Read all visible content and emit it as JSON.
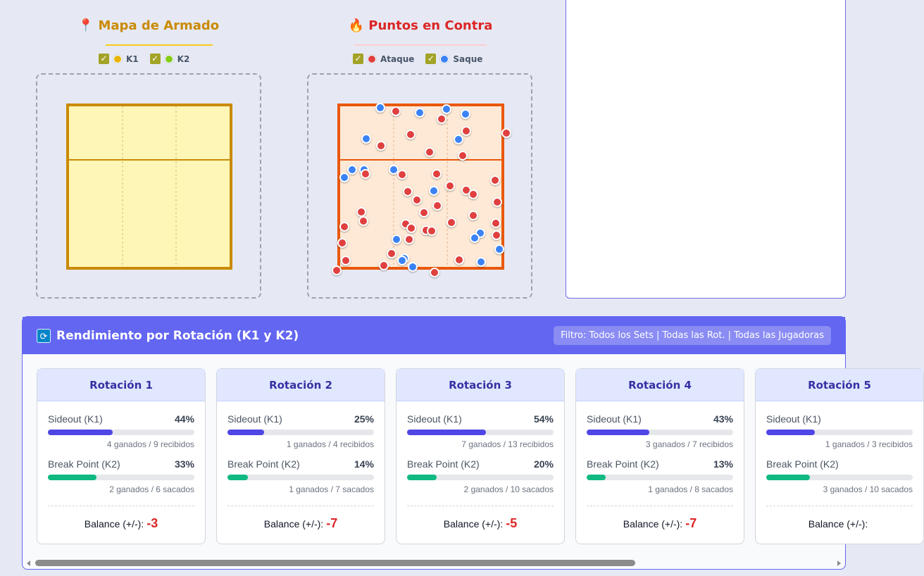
{
  "armado": {
    "title_icon": "📍",
    "title": "Mapa de Armado",
    "legend": [
      {
        "label": "K1",
        "color": "#eab308"
      },
      {
        "label": "K2",
        "color": "#84cc16"
      }
    ]
  },
  "contra": {
    "title_icon": "🔥",
    "title": "Puntos en Contra",
    "legend": [
      {
        "label": "Ataque",
        "color": "#e0403f"
      },
      {
        "label": "Saque",
        "color": "#3b82f6"
      }
    ]
  },
  "rotacion": {
    "icon": "🔄",
    "title": "Rendimiento por Rotación (K1 y K2)",
    "filter": "Filtro: Todos los Sets | Todas las Rot. | Todas las Jugadoras",
    "cards": [
      {
        "name": "Rotación 1",
        "so_label": "Sideout (K1)",
        "so_pct": "44%",
        "so_value": 0.44,
        "so_sub": "4 ganados / 9 recibidos",
        "bp_label": "Break Point (K2)",
        "bp_pct": "33%",
        "bp_value": 0.33,
        "bp_sub": "2 ganados / 6 sacados",
        "balance_label": "Balance (+/-):",
        "balance": "-3"
      },
      {
        "name": "Rotación 2",
        "so_label": "Sideout (K1)",
        "so_pct": "25%",
        "so_value": 0.25,
        "so_sub": "1 ganados / 4 recibidos",
        "bp_label": "Break Point (K2)",
        "bp_pct": "14%",
        "bp_value": 0.14,
        "bp_sub": "1 ganados / 7 sacados",
        "balance_label": "Balance (+/-):",
        "balance": "-7"
      },
      {
        "name": "Rotación 3",
        "so_label": "Sideout (K1)",
        "so_pct": "54%",
        "so_value": 0.54,
        "so_sub": "7 ganados / 13 recibidos",
        "bp_label": "Break Point (K2)",
        "bp_pct": "20%",
        "bp_value": 0.2,
        "bp_sub": "2 ganados / 10 sacados",
        "balance_label": "Balance (+/-):",
        "balance": "-5"
      },
      {
        "name": "Rotación 4",
        "so_label": "Sideout (K1)",
        "so_pct": "43%",
        "so_value": 0.43,
        "so_sub": "3 ganados / 7 recibidos",
        "bp_label": "Break Point (K2)",
        "bp_pct": "13%",
        "bp_value": 0.13,
        "bp_sub": "1 ganados / 8 sacados",
        "balance_label": "Balance (+/-):",
        "balance": "-7"
      },
      {
        "name": "Rotación 5",
        "so_label": "Sideout (K1)",
        "so_pct": "",
        "so_value": 0.33,
        "so_sub": "1 ganados / 3 recibidos",
        "bp_label": "Break Point (K2)",
        "bp_pct": "",
        "bp_value": 0.3,
        "bp_sub": "3 ganados / 10 sacados",
        "balance_label": "Balance (+/-):",
        "balance": ""
      }
    ]
  }
}
